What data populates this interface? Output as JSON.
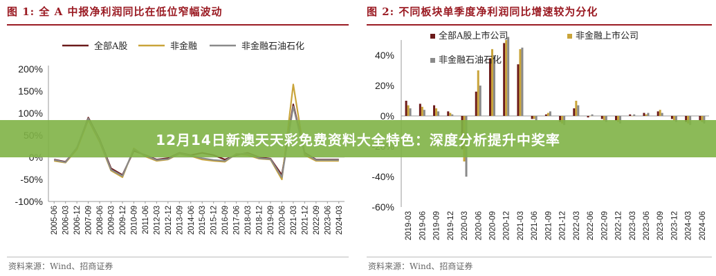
{
  "banner": {
    "text": "12月14日新澳天天彩免费资料大全特色：深度分析提升中奖率"
  },
  "chart_data": [
    {
      "type": "line",
      "title": "图 1:  全 A 中报净利润同比在低位窄幅波动",
      "source": "资料来源：Wind、招商证券",
      "x": [
        "2005-06",
        "2006-03",
        "2006-12",
        "2007-09",
        "2008-06",
        "2009-03",
        "2009-12",
        "2010-09",
        "2011-06",
        "2012-03",
        "2012-12",
        "2013-09",
        "2014-06",
        "2015-03",
        "2015-12",
        "2016-09",
        "2017-06",
        "2018-03",
        "2018-12",
        "2019-09",
        "2020-06",
        "2021-03",
        "2021-12",
        "2022-09",
        "2023-06",
        "2024-03"
      ],
      "x_ticks": [
        "2005-06",
        "2006-03",
        "2006-12",
        "2007-09",
        "2008-06",
        "2009-03",
        "2009-12",
        "2010-09",
        "2011-06",
        "2012-03",
        "2012-12",
        "2013-09",
        "2014-06",
        "2015-03",
        "2015-12",
        "2016-09",
        "2017-06",
        "2018-03",
        "2018-12",
        "2019-09",
        "2020-06",
        "2021-03",
        "2021-12",
        "2022-09",
        "2023-06",
        "2024-03"
      ],
      "y_ticks": [
        "200%",
        "150%",
        "100%",
        "50%",
        "0%",
        "-50%",
        "-100%"
      ],
      "ylim": [
        -100,
        200
      ],
      "legend_position": "top",
      "series": [
        {
          "name": "全部A股",
          "color": "#6b1a1a",
          "values": [
            -5,
            -10,
            20,
            90,
            40,
            -25,
            -40,
            15,
            5,
            -5,
            -2,
            10,
            5,
            10,
            5,
            -5,
            5,
            10,
            0,
            -3,
            -40,
            120,
            10,
            -5,
            -5,
            -5
          ]
        },
        {
          "name": "非金融",
          "color": "#c9a43a",
          "values": [
            -8,
            -12,
            18,
            85,
            35,
            -30,
            -45,
            20,
            2,
            -8,
            -5,
            8,
            3,
            -5,
            -8,
            -10,
            8,
            5,
            -3,
            -5,
            -50,
            165,
            5,
            -8,
            -8,
            -8
          ]
        },
        {
          "name": "非金融石油石化",
          "color": "#8a8a8a",
          "values": [
            -6,
            -11,
            22,
            88,
            38,
            -28,
            -42,
            18,
            4,
            -6,
            -4,
            9,
            4,
            -2,
            -6,
            -8,
            7,
            8,
            -2,
            -4,
            -45,
            115,
            8,
            -6,
            -6,
            -6
          ]
        }
      ]
    },
    {
      "type": "bar",
      "title": "图 2:  不同板块单季度净利润同比增速较为分化",
      "source": "资料来源：Wind、招商证券",
      "categories": [
        "2019-03",
        "2019-06",
        "2019-09",
        "2019-12",
        "2020-03",
        "2020-06",
        "2020-09",
        "2020-12",
        "2021-03",
        "2021-06",
        "2021-09",
        "2021-12",
        "2022-03",
        "2022-06",
        "2022-09",
        "2022-12",
        "2023-03",
        "2023-06",
        "2023-09",
        "2023-12",
        "2024-03",
        "2024-06"
      ],
      "y_ticks": [
        "40%",
        "20%",
        "0%",
        "-20%",
        "-40%",
        "-60%"
      ],
      "ylim": [
        -60,
        50
      ],
      "legend_position": "top-left",
      "series": [
        {
          "name": "全部A股上市公司",
          "color": "#6b1a1a",
          "values": [
            10,
            8,
            7,
            3,
            -22,
            16,
            38,
            48,
            34,
            -2,
            1,
            -4,
            5,
            -1,
            -2,
            -3,
            1,
            2,
            3,
            -2,
            -4,
            -3
          ]
        },
        {
          "name": "非金融上市公司",
          "color": "#c9a43a",
          "values": [
            7,
            6,
            5,
            2,
            -30,
            30,
            44,
            50,
            44,
            -2,
            2,
            -5,
            10,
            0,
            -3,
            -4,
            0,
            1,
            4,
            -3,
            -5,
            -4
          ]
        },
        {
          "name": "非金融石油石化",
          "color": "#8a8a8a",
          "values": [
            5,
            4,
            3,
            1,
            -40,
            20,
            40,
            52,
            45,
            -3,
            3,
            -6,
            7,
            1,
            -4,
            -5,
            1,
            2,
            2,
            -4,
            -6,
            -5
          ]
        }
      ]
    }
  ]
}
